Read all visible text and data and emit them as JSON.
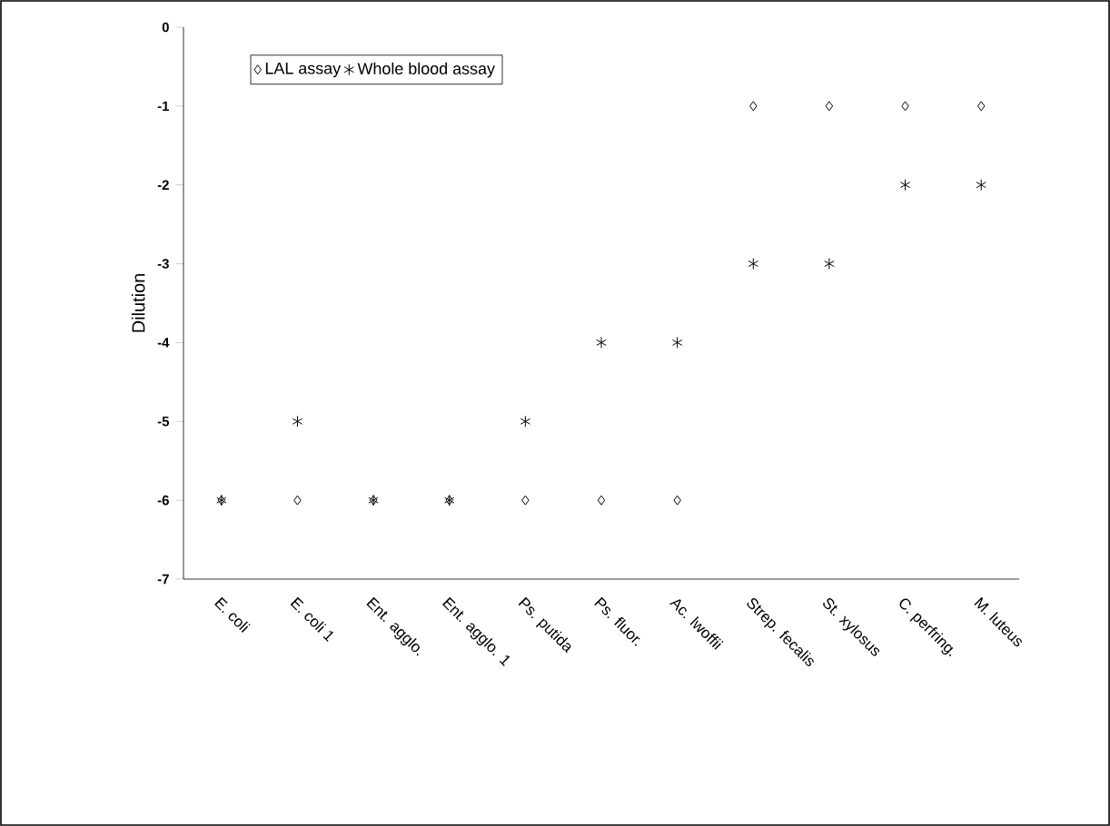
{
  "chart_data": {
    "type": "scatter",
    "ylabel": "Dilution",
    "categories": [
      "E. coli",
      "E. coli 1",
      "Ent. agglo.",
      "Ent. agglo. 1",
      "Ps. putida",
      "Ps. fluor.",
      "Ac. lwoffii",
      "Strep. fecalis",
      "St. xylosus",
      "C. perfring.",
      "M. luteus"
    ],
    "series": [
      {
        "name": "LAL assay",
        "color": "#000000",
        "marker": "diamond",
        "values": [
          -6,
          -6,
          -6,
          -6,
          -6,
          -6,
          -6,
          -1,
          -1,
          -1,
          -1
        ]
      },
      {
        "name": "Whole blood assay",
        "color": "#000000",
        "marker": "cross",
        "values": [
          -6,
          -5,
          -6,
          -6,
          -5,
          -4,
          -4,
          -3,
          -3,
          -2,
          -2
        ]
      }
    ],
    "ylim": [
      -7,
      0
    ],
    "yticks": [
      -7,
      -6,
      -5,
      -4,
      -3,
      -2,
      -1,
      0
    ],
    "grid": false,
    "legend": "top left"
  }
}
